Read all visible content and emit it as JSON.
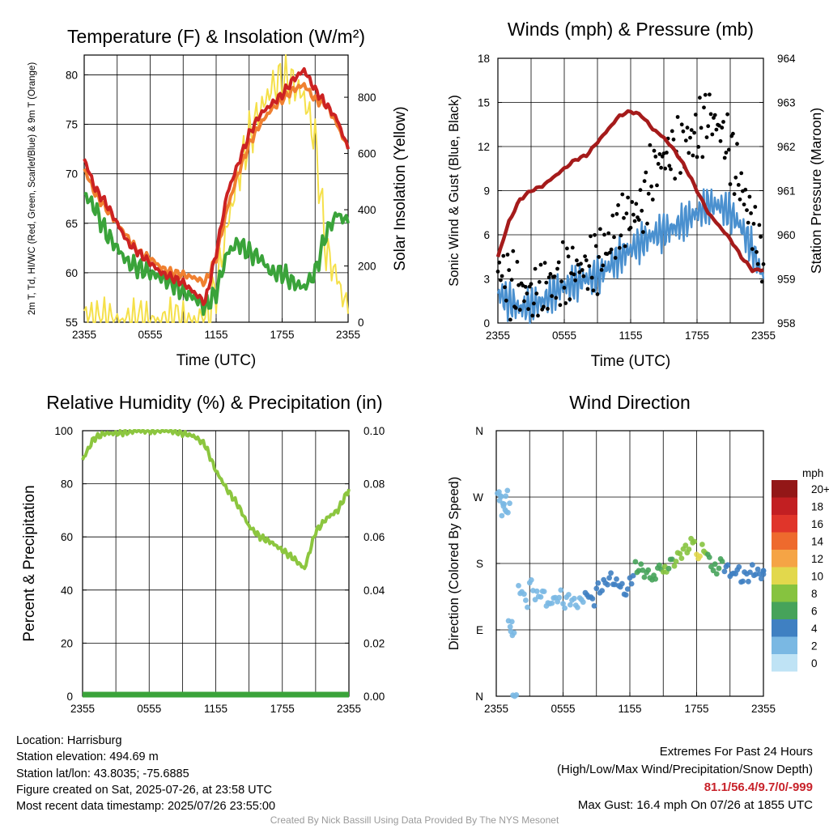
{
  "colors": {
    "temp": "#cc2222",
    "heat_index": "#bb3322",
    "dewpoint": "#3aa33a",
    "temp_9m": "#f08030",
    "insolation": "#f5e04a",
    "wind": "#4a90cf",
    "gust": "#000000",
    "pressure": "#a51b1b",
    "rh": "#8cc63f",
    "precip": "#3aa33a"
  },
  "chart_data": [
    {
      "type": "line",
      "title": "Temperature (F) & Insolation (W/m²)",
      "xlabel": "Time (UTC)",
      "ylabel": "2m T, Td, HI/WC (Red, Green, Scarlet/Blue) & 9m T (Orange)",
      "ylabel2": "Solar Insolation (Yellow)",
      "x_ticks": [
        "2355",
        "0555",
        "1155",
        "1755",
        "2355"
      ],
      "ylim": [
        55,
        82
      ],
      "y_ticks": [
        55,
        60,
        65,
        70,
        75,
        80
      ],
      "ylim2": [
        0,
        950
      ],
      "y2_ticks": [
        0,
        200,
        400,
        600,
        800
      ],
      "x_hours": [
        0,
        1,
        2,
        3,
        4,
        5,
        6,
        7,
        8,
        9,
        10,
        11,
        12,
        13,
        14,
        15,
        16,
        17,
        18,
        19,
        20,
        21,
        22,
        23,
        24
      ],
      "series": [
        {
          "key": "temp",
          "values": [
            71.5,
            68.5,
            67.0,
            65.0,
            63.0,
            62.0,
            61.0,
            60.0,
            59.5,
            59.0,
            58.0,
            57.0,
            62.0,
            68.0,
            71.0,
            74.0,
            76.0,
            77.0,
            78.0,
            79.5,
            80.5,
            78.5,
            77.0,
            75.5,
            72.5
          ]
        },
        {
          "key": "temp_9m",
          "values": [
            70.5,
            68.0,
            66.5,
            65.0,
            63.5,
            62.0,
            61.5,
            60.5,
            60.0,
            59.8,
            59.5,
            59.0,
            61.5,
            66.5,
            70.0,
            73.0,
            75.0,
            76.5,
            77.5,
            78.5,
            79.0,
            77.5,
            77.0,
            75.0,
            72.5
          ]
        },
        {
          "key": "dewpoint",
          "values": [
            68.0,
            66.5,
            64.0,
            62.5,
            61.0,
            60.5,
            60.0,
            59.5,
            59.0,
            58.0,
            57.5,
            56.5,
            58.0,
            62.0,
            63.0,
            62.0,
            61.5,
            60.0,
            60.0,
            59.0,
            58.5,
            60.0,
            64.0,
            66.0,
            65.0
          ]
        },
        {
          "key": "insolation",
          "axis": "right",
          "values": [
            40,
            0,
            0,
            0,
            0,
            0,
            0,
            0,
            0,
            0,
            0,
            5,
            120,
            340,
            520,
            660,
            750,
            830,
            870,
            850,
            800,
            650,
            250,
            160,
            30
          ]
        }
      ]
    },
    {
      "type": "scatter",
      "title": "Winds (mph) & Pressure (mb)",
      "xlabel": "Time (UTC)",
      "ylabel": "Sonic Wind & Gust (Blue, Black)",
      "ylabel2": "Station Pressure (Maroon)",
      "x_ticks": [
        "2355",
        "0555",
        "1155",
        "1755",
        "2355"
      ],
      "ylim": [
        0,
        18
      ],
      "y_ticks": [
        0,
        3,
        6,
        9,
        12,
        15,
        18
      ],
      "ylim2": [
        958,
        964
      ],
      "y2_ticks": [
        958,
        959,
        960,
        961,
        962,
        963,
        964
      ],
      "x_hours": [
        0,
        1,
        2,
        3,
        4,
        5,
        6,
        7,
        8,
        9,
        10,
        11,
        12,
        13,
        14,
        15,
        16,
        17,
        18,
        19,
        20,
        21,
        22,
        23,
        24
      ],
      "series": [
        {
          "key": "wind",
          "type": "line",
          "values": [
            2.0,
            1.5,
            1.0,
            1.2,
            1.5,
            2.0,
            2.5,
            2.7,
            3.0,
            3.2,
            3.8,
            4.5,
            5.0,
            5.5,
            6.0,
            6.2,
            6.5,
            7.0,
            7.5,
            8.0,
            8.0,
            7.5,
            6.5,
            5.0,
            3.0
          ]
        },
        {
          "key": "gust",
          "type": "scatter",
          "values": [
            3.5,
            2.5,
            2.0,
            1.5,
            2.0,
            2.5,
            3.0,
            3.5,
            3.5,
            4.0,
            5.0,
            6.5,
            7.0,
            7.5,
            10.0,
            11.0,
            11.5,
            12.0,
            12.5,
            14.0,
            13.0,
            11.5,
            9.0,
            6.5,
            4.0
          ]
        },
        {
          "key": "pressure",
          "type": "line",
          "axis": "right",
          "values": [
            959.5,
            960.3,
            960.8,
            961.0,
            961.1,
            961.3,
            961.5,
            961.7,
            961.8,
            962.1,
            962.4,
            962.7,
            962.8,
            962.7,
            962.4,
            962.2,
            961.9,
            961.5,
            961.0,
            960.5,
            960.2,
            959.9,
            959.5,
            959.2,
            959.2
          ]
        }
      ]
    },
    {
      "type": "line",
      "title": "Relative Humidity (%) & Precipitation (in)",
      "xlabel": "",
      "ylabel": "Percent & Precipitation",
      "x_ticks": [
        "2355",
        "0555",
        "1155",
        "1755",
        "2355"
      ],
      "ylim": [
        0,
        100
      ],
      "y_ticks": [
        0,
        20,
        40,
        60,
        80,
        100
      ],
      "ylim2": [
        0,
        0.1
      ],
      "y2_ticks": [
        "0.00",
        "0.02",
        "0.04",
        "0.06",
        "0.08",
        "0.10"
      ],
      "x_hours": [
        0,
        1,
        2,
        3,
        4,
        5,
        6,
        7,
        8,
        9,
        10,
        11,
        12,
        13,
        14,
        15,
        16,
        17,
        18,
        19,
        20,
        21,
        22,
        23,
        24
      ],
      "series": [
        {
          "key": "rh",
          "values": [
            89,
            97,
            99,
            99,
            99.5,
            100,
            100,
            100,
            100,
            99,
            98,
            95,
            85,
            78,
            72,
            64,
            60,
            58,
            55,
            52,
            48,
            62,
            67,
            70,
            78
          ]
        },
        {
          "key": "precip",
          "axis": "right",
          "values": [
            0,
            0,
            0,
            0,
            0,
            0,
            0,
            0,
            0,
            0,
            0,
            0,
            0,
            0,
            0,
            0,
            0,
            0,
            0,
            0,
            0,
            0,
            0,
            0,
            0
          ]
        }
      ]
    },
    {
      "type": "scatter",
      "title": "Wind Direction",
      "xlabel": "",
      "ylabel": "Direction (Colored By Speed)",
      "x_ticks": [
        "2355",
        "0555",
        "1155",
        "1755",
        "2355"
      ],
      "y_ticks": [
        "N",
        "E",
        "S",
        "W",
        "N"
      ],
      "ylim": [
        0,
        360
      ],
      "colorbar": {
        "unit": "mph",
        "labels": [
          "0",
          "2",
          "4",
          "6",
          "8",
          "10",
          "12",
          "14",
          "16",
          "18",
          "20+"
        ],
        "colors": [
          "#bfe3f5",
          "#7ab8e3",
          "#3f80c2",
          "#46a35a",
          "#86c33f",
          "#e2d84c",
          "#f5a445",
          "#ee6a2d",
          "#e0352a",
          "#c21f22",
          "#931717"
        ]
      },
      "points": [
        {
          "h": 0.1,
          "dir": 275,
          "mph": 1
        },
        {
          "h": 0.3,
          "dir": 265,
          "mph": 1
        },
        {
          "h": 0.5,
          "dir": 250,
          "mph": 1
        },
        {
          "h": 0.7,
          "dir": 270,
          "mph": 1
        },
        {
          "h": 0.9,
          "dir": 255,
          "mph": 1
        },
        {
          "h": 1.1,
          "dir": 100,
          "mph": 1
        },
        {
          "h": 1.3,
          "dir": 85,
          "mph": 1
        },
        {
          "h": 1.5,
          "dir": 0,
          "mph": 1
        },
        {
          "h": 2.0,
          "dir": 145,
          "mph": 1
        },
        {
          "h": 2.5,
          "dir": 130,
          "mph": 2
        },
        {
          "h": 3.0,
          "dir": 150,
          "mph": 1
        },
        {
          "h": 3.5,
          "dir": 135,
          "mph": 2
        },
        {
          "h": 4.0,
          "dir": 140,
          "mph": 2
        },
        {
          "h": 4.5,
          "dir": 125,
          "mph": 2
        },
        {
          "h": 5.0,
          "dir": 130,
          "mph": 2
        },
        {
          "h": 5.5,
          "dir": 135,
          "mph": 2
        },
        {
          "h": 6.0,
          "dir": 128,
          "mph": 2
        },
        {
          "h": 6.5,
          "dir": 132,
          "mph": 2
        },
        {
          "h": 7.0,
          "dir": 125,
          "mph": 2
        },
        {
          "h": 7.5,
          "dir": 130,
          "mph": 2
        },
        {
          "h": 8.0,
          "dir": 138,
          "mph": 3
        },
        {
          "h": 8.5,
          "dir": 130,
          "mph": 3
        },
        {
          "h": 9.0,
          "dir": 145,
          "mph": 3
        },
        {
          "h": 9.5,
          "dir": 150,
          "mph": 4
        },
        {
          "h": 10.0,
          "dir": 160,
          "mph": 4
        },
        {
          "h": 10.5,
          "dir": 155,
          "mph": 4
        },
        {
          "h": 11.0,
          "dir": 150,
          "mph": 4
        },
        {
          "h": 11.5,
          "dir": 140,
          "mph": 4
        },
        {
          "h": 12.0,
          "dir": 160,
          "mph": 4
        },
        {
          "h": 12.5,
          "dir": 175,
          "mph": 5
        },
        {
          "h": 13.0,
          "dir": 170,
          "mph": 6
        },
        {
          "h": 13.5,
          "dir": 165,
          "mph": 5
        },
        {
          "h": 14.0,
          "dir": 160,
          "mph": 6
        },
        {
          "h": 14.5,
          "dir": 175,
          "mph": 6
        },
        {
          "h": 15.0,
          "dir": 170,
          "mph": 7
        },
        {
          "h": 15.5,
          "dir": 180,
          "mph": 6
        },
        {
          "h": 16.0,
          "dir": 185,
          "mph": 7
        },
        {
          "h": 16.5,
          "dir": 195,
          "mph": 7
        },
        {
          "h": 17.0,
          "dir": 200,
          "mph": 8
        },
        {
          "h": 17.5,
          "dir": 210,
          "mph": 7
        },
        {
          "h": 18.0,
          "dir": 190,
          "mph": 9
        },
        {
          "h": 18.5,
          "dir": 200,
          "mph": 8
        },
        {
          "h": 19.0,
          "dir": 185,
          "mph": 6
        },
        {
          "h": 19.5,
          "dir": 170,
          "mph": 5
        },
        {
          "h": 20.0,
          "dir": 180,
          "mph": 5
        },
        {
          "h": 20.5,
          "dir": 175,
          "mph": 4
        },
        {
          "h": 21.0,
          "dir": 165,
          "mph": 4
        },
        {
          "h": 21.5,
          "dir": 170,
          "mph": 4
        },
        {
          "h": 22.0,
          "dir": 160,
          "mph": 4
        },
        {
          "h": 22.5,
          "dir": 165,
          "mph": 3
        },
        {
          "h": 23.0,
          "dir": 170,
          "mph": 3
        },
        {
          "h": 23.5,
          "dir": 165,
          "mph": 3
        },
        {
          "h": 24.0,
          "dir": 168,
          "mph": 3
        }
      ]
    }
  ],
  "footer": {
    "location": "Location: Harrisburg",
    "elevation": "Station elevation: 494.69 m",
    "latlon": "Station lat/lon: 43.8035; -75.6885",
    "created": "Figure created on Sat, 2025-07-26, at 23:58 UTC",
    "recent": "Most recent data timestamp: 2025/07/26 23:55:00",
    "extremes_title": "Extremes For Past 24 Hours",
    "extremes_legend": "(High/Low/Max Wind/Precipitation/Snow Depth)",
    "extremes_values": "81.1/56.4/9.7/0/-999",
    "max_gust": "Max Gust: 16.4 mph On 07/26 at 1855 UTC",
    "credit": "Created By Nick Bassill Using Data Provided By The NYS Mesonet"
  }
}
